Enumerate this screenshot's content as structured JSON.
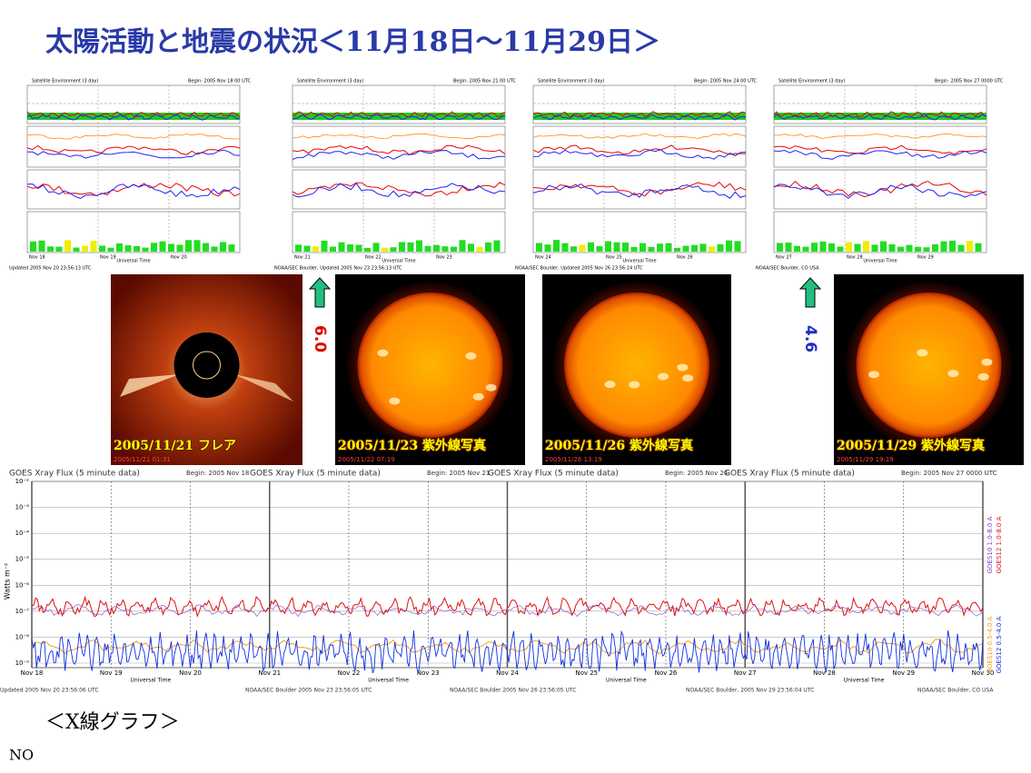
{
  "title": "太陽活動と地震の状況＜11月18日～11月29日＞",
  "top_panels": [
    {
      "title": "Satellite Environment (3 day)",
      "begin": "Begin: 2005 Nov 18 00 UTC",
      "x_labels": [
        "Nov 18",
        "Nov 19",
        "Nov 20"
      ],
      "x_title": "Universal Time",
      "footer": "Updated 2005 Nov 20 23:56:13 UTC"
    },
    {
      "title": "Satellite Environment (3 day)",
      "begin": "Begin: 2005 Nov 21 00 UTC",
      "x_labels": [
        "Nov 21",
        "Nov 22",
        "Nov 23"
      ],
      "x_title": "Universal Time",
      "footer": "NOAA/SEC Boulder, Updated 2005 Nov 23 23:56:13 UTC"
    },
    {
      "title": "Satellite Environment (3 day)",
      "begin": "Begin: 2005 Nov 24 00 UTC",
      "x_labels": [
        "Nov 24",
        "Nov 25",
        "Nov 26"
      ],
      "x_title": "Universal Time",
      "footer": "NOAA/SEC Boulder, Updated 2005 Nov 26 23:56:14 UTC"
    },
    {
      "title": "Satellite Environment (3 day)",
      "begin": "Begin: 2005 Nov 27 0000 UTC",
      "x_labels": [
        "Nov 27",
        "Nov 28",
        "Nov 29"
      ],
      "x_title": "Universal Time",
      "footer": "NOAA/SEC Boulder, CO USA"
    }
  ],
  "photos": [
    {
      "caption": "2005/11/21  フレア",
      "timestamp": "2005/11/21 01:31"
    },
    {
      "caption": "2005/11/23  紫外線写真",
      "timestamp": "2005/11/22 07:19"
    },
    {
      "caption": "2005/11/26  紫外線写真",
      "timestamp": "2005/11/26 13:19"
    },
    {
      "caption": "2005/11/29  紫外線写真",
      "timestamp": "2005/11/29 19:19"
    }
  ],
  "markers": [
    "6.0",
    "4.6"
  ],
  "xray": {
    "title": "GOES Xray Flux (5 minute data)",
    "begins": [
      "Begin: 2005 Nov 18",
      "Begin: 2005 Nov 21",
      "Begin: 2005 Nov 24",
      "Begin: 2005 Nov 27 0000 UTC"
    ],
    "y_label": "Watts m⁻²",
    "y_ticks": [
      "10⁻²",
      "10⁻³",
      "10⁻⁴",
      "10⁻⁵",
      "10⁻⁶",
      "10⁻⁷",
      "10⁻⁸",
      "10⁻⁹"
    ],
    "x_labels": [
      "Nov 18",
      "Nov 19",
      "Nov 20",
      "Nov 21",
      "Nov 22",
      "Nov 23",
      "Nov 24",
      "Nov 25",
      "Nov 26",
      "Nov 27",
      "Nov 28",
      "Nov 29",
      "Nov 30"
    ],
    "x_title": "Universal Time",
    "footers": [
      "Updated 2005 Nov 20 23:56:06 UTC",
      "NOAA/SEC Boulder 2005 Nov 23 23:56:05 UTC",
      "NOAA/SEC Boulder 2005 Nov 26 23:56:05 UTC",
      "NOAA/SEC Boulder, 2005 Nov 29 23:56:04 UTC",
      "NOAA/SEC Boulder, CO USA"
    ],
    "legend": [
      "GOES10 1.0-8.0 A",
      "GOES12 1.0-8.0 A",
      "GOES10 0.5-4.0 A",
      "GOES12 0.5-4.0 A"
    ]
  },
  "section_label": "＜X線グラフ＞",
  "note": "NO"
}
